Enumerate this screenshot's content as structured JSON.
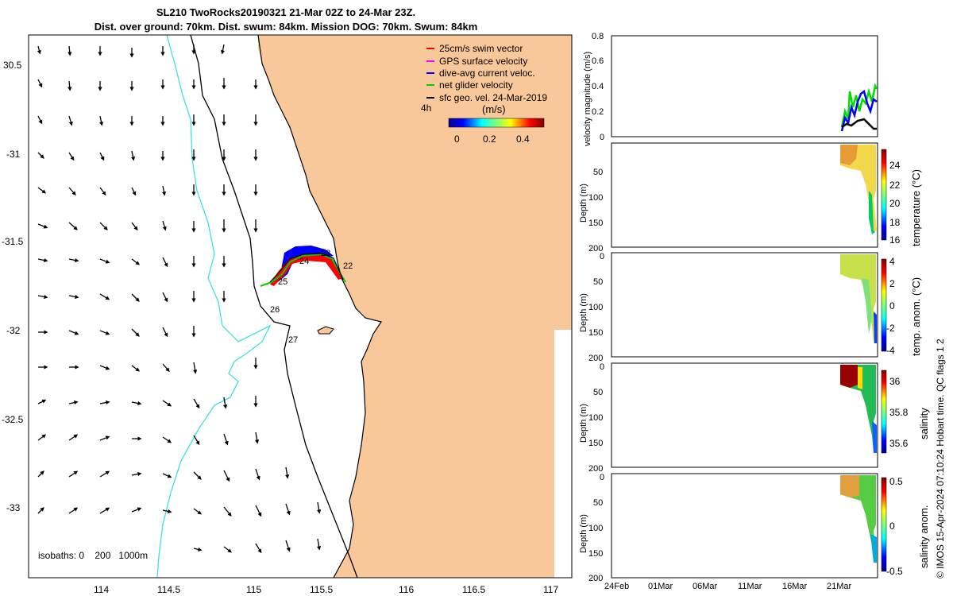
{
  "title": {
    "line1": "SL210 TwoRocks20190321 21-Mar 02Z to 24-Mar 23Z.",
    "line2": "Dist. over ground: 70km. Dist. swum: 84km. Mission DOG: 70km. Swum: 84km"
  },
  "colors": {
    "land": "#f9c89a",
    "sea": "#ffffff",
    "isobath_200": "#40e0e0",
    "coast": "#000000",
    "track_blue": "#0000ff",
    "track_red": "#ff0000",
    "track_green": "#00cc00"
  },
  "map": {
    "lon_ticks": [
      "114",
      "114.5",
      "115",
      "115.5",
      "116",
      "116.5",
      "117"
    ],
    "lat_ticks": [
      "30.5",
      "-31",
      "-31.5",
      "-32",
      "-32.5",
      "-33"
    ],
    "legend": [
      {
        "label": "25cm/s swim vector",
        "color": "#ff0000"
      },
      {
        "label": "GPS surface velocity",
        "color": "#ff00ff"
      },
      {
        "label": "dive-avg current veloc.",
        "color": "#0000ff"
      },
      {
        "label": "net glider velocity",
        "color": "#00cc00"
      },
      {
        "label": "sfc geo. vel. 24-Mar-2019",
        "color": "#000000"
      }
    ],
    "colorbar": {
      "title": "(m/s)",
      "ticks": [
        "0",
        "0.2",
        "0.4"
      ],
      "side_label": "4h"
    },
    "day_labels": [
      "23",
      "24",
      "22",
      "25",
      "26",
      "27"
    ],
    "isobaths_label": "isobaths: 0    200   1000m"
  },
  "panels": {
    "x_ticks": [
      "24Feb",
      "01Mar",
      "06Mar",
      "11Mar",
      "16Mar",
      "21Mar"
    ],
    "velocity": {
      "ylabel": "velocity magnitude (m/s)",
      "y_ticks": [
        "0",
        "0.2",
        "0.4",
        "0.6",
        "0.8"
      ]
    },
    "temperature": {
      "ylabel": "Depth (m)",
      "cbar_label": "temperature (°C)",
      "y_ticks": [
        "50",
        "100",
        "150",
        "200"
      ],
      "cbar_ticks": [
        "24",
        "22",
        "20",
        "18",
        "16"
      ]
    },
    "temp_anom": {
      "ylabel": "Depth (m)",
      "cbar_label": "temp. anom. (°C)",
      "y_ticks": [
        "0",
        "50",
        "100",
        "150",
        "200"
      ],
      "cbar_ticks": [
        "4",
        "2",
        "0",
        "-2",
        "-4"
      ]
    },
    "salinity": {
      "ylabel": "Depth (m)",
      "cbar_label": "salinity",
      "y_ticks": [
        "0",
        "50",
        "100",
        "150",
        "200"
      ],
      "cbar_ticks": [
        "36",
        "35.8",
        "35.6"
      ]
    },
    "sal_anom": {
      "ylabel": "Depth (m)",
      "cbar_label": "salinity anom.",
      "y_ticks": [
        "0",
        "50",
        "100",
        "150",
        "200"
      ],
      "cbar_ticks": [
        "0.5",
        "0",
        "-0.5"
      ]
    }
  },
  "footer": "© IMOS 15-Apr-2024 07:10:24 Hobart time. QC flags 1  2"
}
